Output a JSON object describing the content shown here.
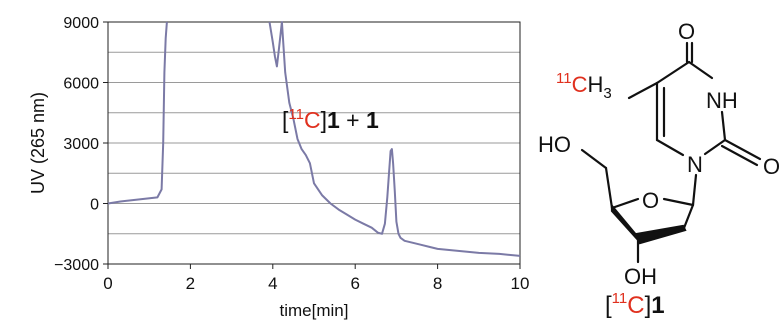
{
  "chart_data": {
    "type": "line",
    "title": "",
    "xlabel": "time[min]",
    "ylabel": "UV (265 nm)",
    "xlim": [
      0,
      10
    ],
    "ylim": [
      -3000,
      9000
    ],
    "x_ticks": [
      "0",
      "2",
      "4",
      "6",
      "8",
      "10"
    ],
    "y_ticks": [
      "9000",
      "6000",
      "3000",
      "0",
      "−3000"
    ],
    "grid": "horizontal",
    "line_color": "#7b7aa6",
    "series": [
      {
        "x": [
          0,
          0.3,
          0.6,
          0.9,
          1.2,
          1.3,
          1.34,
          1.37,
          1.4,
          1.43,
          3.92,
          4.0,
          4.05,
          4.1,
          4.15,
          4.2,
          4.22,
          4.3,
          4.4,
          4.5,
          4.6,
          4.7,
          4.8,
          4.9,
          5.0,
          5.2,
          5.4,
          5.6,
          5.8,
          6.0,
          6.2,
          6.4,
          6.55,
          6.65,
          6.72,
          6.78,
          6.82,
          6.86,
          6.89,
          6.92,
          6.96,
          7.0,
          7.05,
          7.1,
          7.2,
          7.4,
          7.6,
          7.8,
          8.0,
          8.5,
          9.0,
          9.5,
          10.0
        ],
        "y": [
          0,
          100,
          170,
          240,
          300,
          700,
          3000,
          6500,
          8200,
          9000,
          9000,
          8000,
          7300,
          6800,
          7700,
          8600,
          9000,
          6500,
          5000,
          4200,
          3200,
          2700,
          2400,
          2000,
          1000,
          400,
          0,
          -300,
          -550,
          -800,
          -1000,
          -1200,
          -1450,
          -1500,
          -1000,
          300,
          1500,
          2600,
          2700,
          2000,
          600,
          -900,
          -1500,
          -1700,
          -1850,
          -1950,
          -2050,
          -2150,
          -2250,
          -2350,
          -2450,
          -2500,
          -2600
        ]
      }
    ],
    "annotation": {
      "bracket_open": "[",
      "isotope": "11",
      "element": "C",
      "bracket_close": "]",
      "compound": "1",
      "plus": " + ",
      "compound2": "1"
    },
    "isotope_color": "#e0301e"
  },
  "structure": {
    "atoms": {
      "o_top": "O",
      "nh": "NH",
      "o_right": "O",
      "n_ring": "N",
      "ho": "HO",
      "o_sugar": "O",
      "oh": "OH"
    },
    "methyl": {
      "isotope": "11",
      "element": "C",
      "h": "H",
      "sub": "3"
    },
    "label": {
      "bracket_open": "[",
      "isotope": "11",
      "element": "C",
      "bracket_close": "]",
      "compound": "1"
    }
  }
}
